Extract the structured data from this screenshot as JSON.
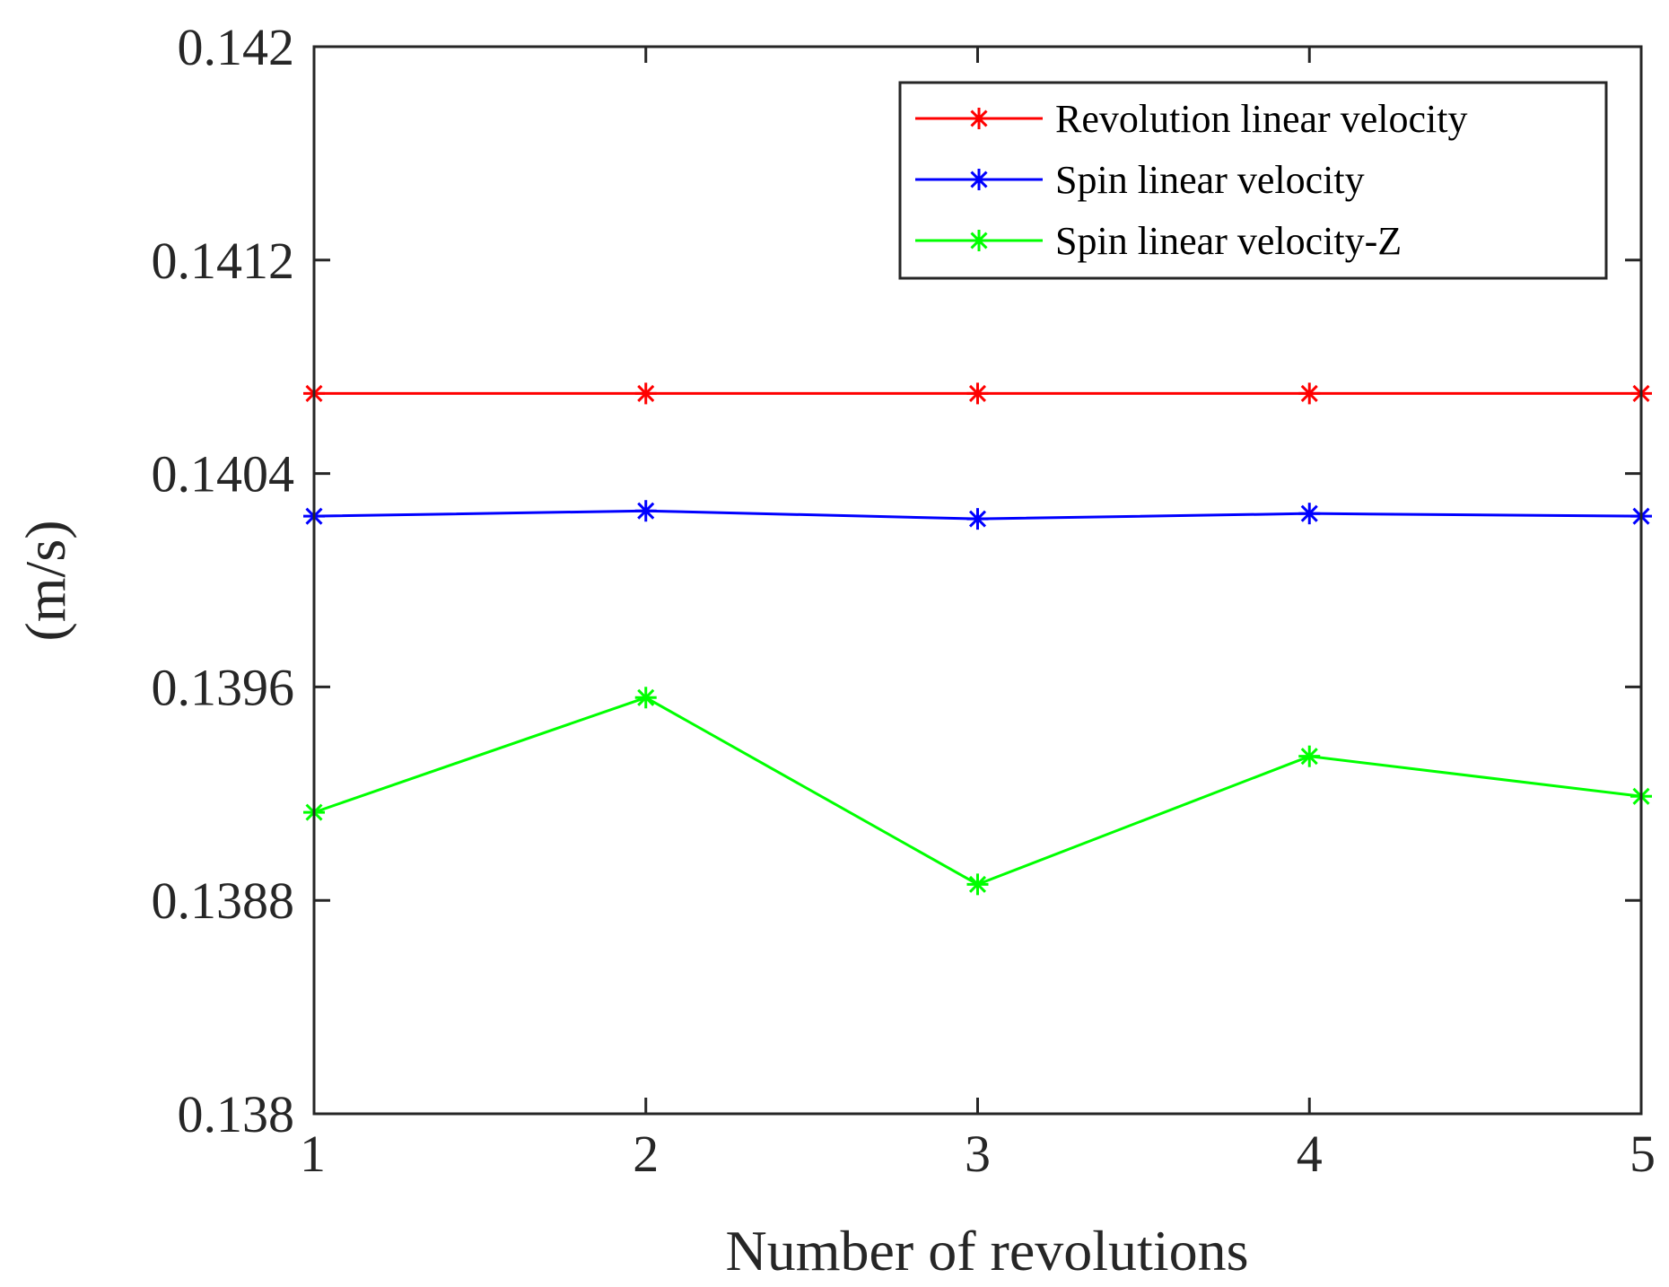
{
  "chart_data": {
    "type": "line",
    "title": "",
    "xlabel": "Number of revolutions",
    "ylabel": "(m/s)",
    "x": [
      1,
      2,
      3,
      4,
      5
    ],
    "xlim": [
      1,
      5
    ],
    "ylim": [
      0.138,
      0.142
    ],
    "xticks": [
      1,
      2,
      3,
      4,
      5
    ],
    "xtick_labels": [
      "1",
      "2",
      "3",
      "4",
      "5"
    ],
    "yticks": [
      0.138,
      0.1388,
      0.1396,
      0.1404,
      0.1412,
      0.142
    ],
    "ytick_labels": [
      "0.138",
      "0.1388",
      "0.1396",
      "0.1404",
      "0.1412",
      "0.142"
    ],
    "grid": false,
    "legend_position": "top-right",
    "series": [
      {
        "name": "Revolution linear velocity",
        "color": "#ff0000",
        "marker": "asterisk",
        "values": [
          0.1407,
          0.1407,
          0.1407,
          0.1407,
          0.1407
        ]
      },
      {
        "name": "Spin linear velocity",
        "color": "#0000ff",
        "marker": "asterisk",
        "values": [
          0.14024,
          0.14026,
          0.14023,
          0.14025,
          0.14024
        ]
      },
      {
        "name": "Spin linear velocity-Z",
        "color": "#00ff00",
        "marker": "asterisk",
        "values": [
          0.13913,
          0.13956,
          0.13886,
          0.13934,
          0.13919
        ]
      }
    ]
  }
}
